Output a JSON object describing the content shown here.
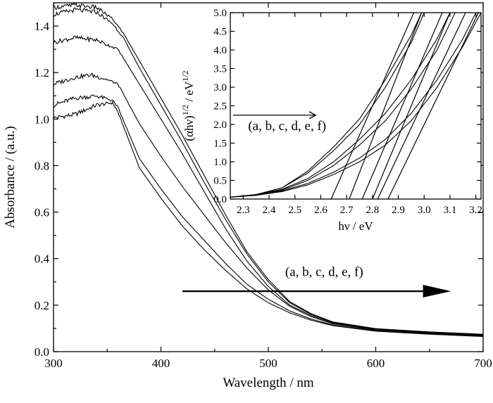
{
  "chart_data": [
    {
      "type": "line",
      "title": "",
      "xlabel": "Wavelength / nm",
      "ylabel": "Absorbance / (a.u.)",
      "xlim": [
        300,
        700
      ],
      "ylim": [
        0,
        1.5
      ],
      "xticks": [
        "300",
        "400",
        "500",
        "600",
        "700"
      ],
      "yticks": [
        "0.0",
        "0.2",
        "0.4",
        "0.6",
        "0.8",
        "1.0",
        "1.2",
        "1.4"
      ],
      "legend": "none",
      "grid": false,
      "annotation": "(a, b, c, d, e, f)",
      "series": [
        {
          "values": [
            [
              300,
              1.005
            ],
            [
              320,
              1.02
            ],
            [
              340,
              1.06
            ],
            [
              355,
              1.07
            ],
            [
              360,
              1.03
            ],
            [
              380,
              0.79
            ],
            [
              400,
              0.66
            ],
            [
              420,
              0.54
            ],
            [
              440,
              0.44
            ],
            [
              460,
              0.35
            ],
            [
              480,
              0.27
            ],
            [
              500,
              0.21
            ],
            [
              520,
              0.167
            ],
            [
              540,
              0.135
            ],
            [
              560,
              0.112
            ],
            [
              600,
              0.088
            ],
            [
              650,
              0.075
            ],
            [
              700,
              0.065
            ]
          ]
        },
        {
          "values": [
            [
              300,
              1.06
            ],
            [
              320,
              1.09
            ],
            [
              340,
              1.1
            ],
            [
              355,
              1.08
            ],
            [
              360,
              1.05
            ],
            [
              380,
              0.83
            ],
            [
              400,
              0.7
            ],
            [
              420,
              0.58
            ],
            [
              440,
              0.48
            ],
            [
              460,
              0.38
            ],
            [
              480,
              0.29
            ],
            [
              500,
              0.225
            ],
            [
              520,
              0.175
            ],
            [
              540,
              0.14
            ],
            [
              560,
              0.115
            ],
            [
              600,
              0.09
            ],
            [
              650,
              0.077
            ],
            [
              700,
              0.068
            ]
          ]
        },
        {
          "values": [
            [
              300,
              1.15
            ],
            [
              320,
              1.18
            ],
            [
              335,
              1.19
            ],
            [
              350,
              1.17
            ],
            [
              360,
              1.15
            ],
            [
              380,
              0.98
            ],
            [
              400,
              0.84
            ],
            [
              420,
              0.71
            ],
            [
              440,
              0.59
            ],
            [
              460,
              0.47
            ],
            [
              480,
              0.36
            ],
            [
              500,
              0.265
            ],
            [
              520,
              0.195
            ],
            [
              540,
              0.15
            ],
            [
              560,
              0.12
            ],
            [
              600,
              0.093
            ],
            [
              650,
              0.08
            ],
            [
              700,
              0.07
            ]
          ]
        },
        {
          "values": [
            [
              300,
              1.33
            ],
            [
              320,
              1.35
            ],
            [
              340,
              1.34
            ],
            [
              355,
              1.31
            ],
            [
              360,
              1.3
            ],
            [
              380,
              1.15
            ],
            [
              400,
              1.0
            ],
            [
              420,
              0.85
            ],
            [
              440,
              0.69
            ],
            [
              460,
              0.53
            ],
            [
              480,
              0.39
            ],
            [
              500,
              0.28
            ],
            [
              520,
              0.2
            ],
            [
              540,
              0.155
            ],
            [
              560,
              0.123
            ],
            [
              600,
              0.095
            ],
            [
              650,
              0.081
            ],
            [
              700,
              0.071
            ]
          ]
        },
        {
          "values": [
            [
              300,
              1.45
            ],
            [
              320,
              1.47
            ],
            [
              340,
              1.46
            ],
            [
              355,
              1.41
            ],
            [
              365,
              1.35
            ],
            [
              380,
              1.22
            ],
            [
              400,
              1.06
            ],
            [
              420,
              0.9
            ],
            [
              440,
              0.73
            ],
            [
              460,
              0.57
            ],
            [
              480,
              0.42
            ],
            [
              500,
              0.3
            ],
            [
              520,
              0.21
            ],
            [
              540,
              0.16
            ],
            [
              560,
              0.126
            ],
            [
              600,
              0.097
            ],
            [
              650,
              0.083
            ],
            [
              700,
              0.073
            ]
          ]
        },
        {
          "values": [
            [
              300,
              1.48
            ],
            [
              320,
              1.49
            ],
            [
              340,
              1.48
            ],
            [
              355,
              1.43
            ],
            [
              365,
              1.37
            ],
            [
              380,
              1.25
            ],
            [
              400,
              1.09
            ],
            [
              420,
              0.93
            ],
            [
              440,
              0.76
            ],
            [
              460,
              0.59
            ],
            [
              480,
              0.43
            ],
            [
              500,
              0.31
            ],
            [
              520,
              0.215
            ],
            [
              540,
              0.163
            ],
            [
              560,
              0.128
            ],
            [
              600,
              0.099
            ],
            [
              650,
              0.085
            ],
            [
              700,
              0.075
            ]
          ]
        }
      ]
    },
    {
      "type": "line",
      "title": "",
      "xlabel": "hν / eV",
      "ylabel": "(αhν)^1/2 / eV^1/2",
      "xlim": [
        2.25,
        3.22
      ],
      "ylim": [
        0,
        5.0
      ],
      "xticks": [
        "2.3",
        "2.4",
        "2.5",
        "2.6",
        "2.7",
        "2.8",
        "2.9",
        "3.0",
        "3.1",
        "3.2"
      ],
      "yticks": [
        "0.0",
        "0.5",
        "1.0",
        "1.5",
        "2.0",
        "2.5",
        "3.0",
        "3.5",
        "4.0",
        "4.5",
        "5.0"
      ],
      "legend": "none",
      "grid": false,
      "annotation": "(a, b, c, d, e, f)",
      "series": [
        {
          "values": [
            [
              2.25,
              0.05
            ],
            [
              2.35,
              0.12
            ],
            [
              2.45,
              0.3
            ],
            [
              2.55,
              0.75
            ],
            [
              2.65,
              1.4
            ],
            [
              2.75,
              2.15
            ],
            [
              2.85,
              3.2
            ],
            [
              2.95,
              4.4
            ],
            [
              2.99,
              5.0
            ]
          ]
        },
        {
          "values": [
            [
              2.25,
              0.05
            ],
            [
              2.35,
              0.12
            ],
            [
              2.45,
              0.3
            ],
            [
              2.55,
              0.7
            ],
            [
              2.65,
              1.3
            ],
            [
              2.75,
              2.0
            ],
            [
              2.85,
              3.0
            ],
            [
              2.95,
              4.2
            ],
            [
              3.0,
              5.0
            ]
          ]
        },
        {
          "values": [
            [
              2.25,
              0.05
            ],
            [
              2.35,
              0.12
            ],
            [
              2.45,
              0.26
            ],
            [
              2.55,
              0.55
            ],
            [
              2.65,
              1.0
            ],
            [
              2.75,
              1.6
            ],
            [
              2.85,
              2.3
            ],
            [
              2.95,
              3.2
            ],
            [
              3.05,
              4.3
            ],
            [
              3.1,
              5.0
            ]
          ]
        },
        {
          "values": [
            [
              2.25,
              0.05
            ],
            [
              2.35,
              0.11
            ],
            [
              2.45,
              0.24
            ],
            [
              2.55,
              0.5
            ],
            [
              2.65,
              0.9
            ],
            [
              2.75,
              1.45
            ],
            [
              2.85,
              2.1
            ],
            [
              2.95,
              2.95
            ],
            [
              3.05,
              4.0
            ],
            [
              3.12,
              5.0
            ]
          ]
        },
        {
          "values": [
            [
              2.25,
              0.05
            ],
            [
              2.35,
              0.1
            ],
            [
              2.45,
              0.22
            ],
            [
              2.55,
              0.42
            ],
            [
              2.65,
              0.72
            ],
            [
              2.75,
              1.1
            ],
            [
              2.85,
              1.6
            ],
            [
              2.95,
              2.3
            ],
            [
              3.05,
              3.2
            ],
            [
              3.15,
              4.3
            ],
            [
              3.2,
              5.0
            ]
          ]
        },
        {
          "values": [
            [
              2.25,
              0.05
            ],
            [
              2.35,
              0.1
            ],
            [
              2.45,
              0.2
            ],
            [
              2.55,
              0.38
            ],
            [
              2.65,
              0.66
            ],
            [
              2.75,
              1.0
            ],
            [
              2.85,
              1.45
            ],
            [
              2.95,
              2.1
            ],
            [
              3.05,
              3.0
            ],
            [
              3.15,
              4.1
            ],
            [
              3.22,
              5.0
            ]
          ]
        }
      ],
      "fit_lines": [
        {
          "x": [
            2.64,
            2.96
          ],
          "y": [
            0,
            5.0
          ]
        },
        {
          "x": [
            2.71,
            2.99
          ],
          "y": [
            0,
            5.0
          ]
        },
        {
          "x": [
            2.76,
            3.07
          ],
          "y": [
            0,
            5.0
          ]
        },
        {
          "x": [
            2.8,
            3.1
          ],
          "y": [
            0,
            5.0
          ]
        },
        {
          "x": [
            2.82,
            3.16
          ],
          "y": [
            0,
            5.0
          ]
        },
        {
          "x": [
            2.86,
            3.21
          ],
          "y": [
            0,
            5.0
          ]
        }
      ]
    }
  ]
}
